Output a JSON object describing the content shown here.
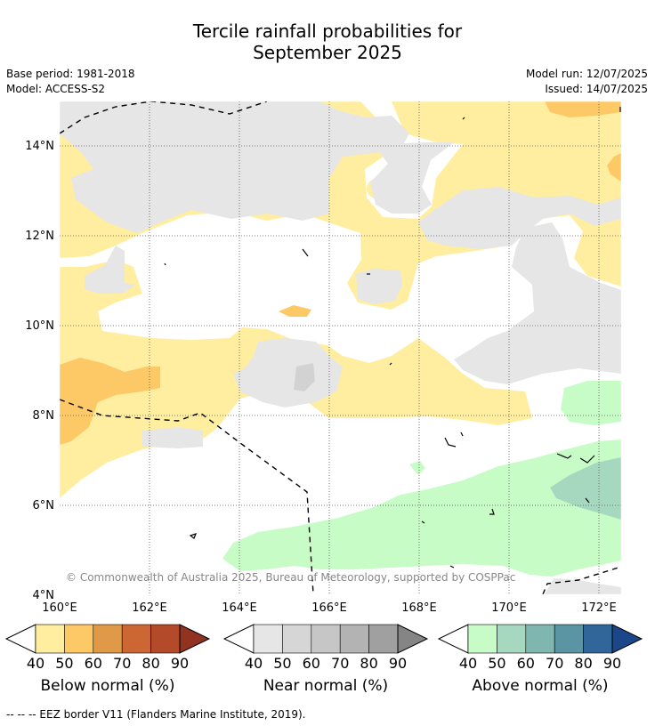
{
  "title": {
    "line1": "Tercile rainfall probabilities for",
    "line2": "September 2025"
  },
  "meta": {
    "base_period": "Base period: 1981-2018",
    "model": "Model: ACCESS-S2",
    "model_run": "Model run: 12/07/2025",
    "issued": "Issued: 14/07/2025"
  },
  "map": {
    "latitude_labels": [
      "14°N",
      "12°N",
      "10°N",
      "8°N",
      "6°N",
      "4°N"
    ],
    "longitude_labels": [
      "160°E",
      "162°E",
      "164°E",
      "166°E",
      "168°E",
      "170°E",
      "172°E"
    ],
    "copyright": "© Commonwealth of Australia 2025, Bureau of Meteorology, supported by COSPPac",
    "colors": {
      "below": "#ffeda0",
      "below_dark": "#fdc966",
      "near": "#e6e6e6",
      "near_dark": "#d2d2d2",
      "above": "#c7fcc7",
      "above_dark": "#a6d8bf"
    }
  },
  "colorbars": [
    {
      "label": "Below normal (%)",
      "ticks": [
        "40",
        "50",
        "60",
        "70",
        "80",
        "90"
      ],
      "colors": [
        "#ffeda0",
        "#fdc966",
        "#e09a47",
        "#cc6633",
        "#b34a29",
        "#923220"
      ]
    },
    {
      "label": "Near normal (%)",
      "ticks": [
        "40",
        "50",
        "60",
        "70",
        "80",
        "90"
      ],
      "colors": [
        "#e6e6e6",
        "#d6d6d6",
        "#c6c6c6",
        "#b3b3b3",
        "#a0a0a0",
        "#858585"
      ]
    },
    {
      "label": "Above normal (%)",
      "ticks": [
        "40",
        "50",
        "60",
        "70",
        "80",
        "90"
      ],
      "colors": [
        "#c7fcc7",
        "#a6d8bf",
        "#7fb6b0",
        "#5b95a3",
        "#31669a",
        "#1a4789"
      ]
    }
  ],
  "footnote": "--  --  -- EEZ border V11 (Flanders Marine Institute, 2019)."
}
